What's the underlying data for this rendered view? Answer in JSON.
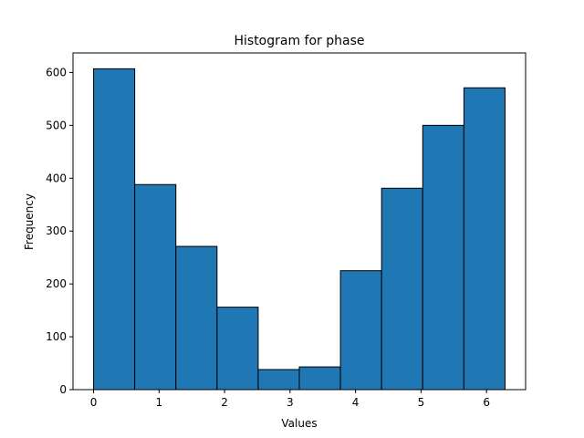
{
  "chart_data": {
    "type": "bar",
    "title": "Histogram for phase",
    "xlabel": "Values",
    "ylabel": "Frequency",
    "bin_edges": [
      0,
      0.6283,
      1.2566,
      1.885,
      2.5133,
      3.1416,
      3.7699,
      4.3982,
      5.0265,
      5.6549,
      6.2832
    ],
    "values": [
      607,
      388,
      271,
      156,
      38,
      43,
      225,
      381,
      500,
      571
    ],
    "xlim": [
      -0.314,
      6.597
    ],
    "ylim": [
      0,
      637
    ],
    "xticks": [
      0,
      1,
      2,
      3,
      4,
      5,
      6
    ],
    "yticks": [
      0,
      100,
      200,
      300,
      400,
      500,
      600
    ],
    "bar_color": "#1f77b4",
    "edge_color": "#000000",
    "grid": false,
    "legend": false
  }
}
